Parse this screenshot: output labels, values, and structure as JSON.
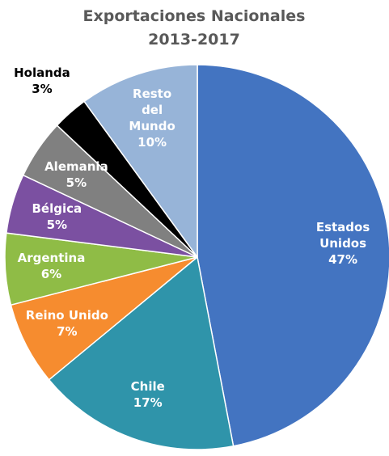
{
  "chart_data": {
    "type": "pie",
    "title": "Exportaciones Nacionales 2013-2017",
    "categories": [
      "Estados Unidos",
      "Chile",
      "Reino Unido",
      "Argentina",
      "Bélgica",
      "Alemania",
      "Holanda",
      "Resto del Mundo"
    ],
    "values": [
      47,
      17,
      7,
      6,
      5,
      5,
      3,
      10
    ],
    "value_labels": [
      "47%",
      "17%",
      "7%",
      "6%",
      "5%",
      "5%",
      "3%",
      "10%"
    ],
    "colors": [
      "#4374c1",
      "#2f94aa",
      "#f68c2f",
      "#8fbc46",
      "#7b50a1",
      "#808080",
      "#000000",
      "#97b4d8"
    ]
  }
}
